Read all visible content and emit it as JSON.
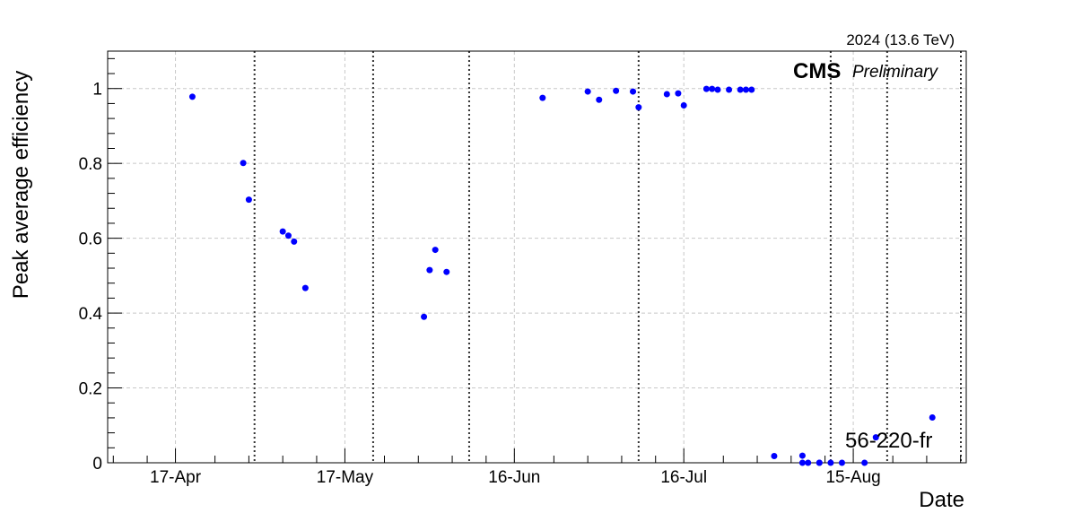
{
  "chart_data": {
    "type": "scatter",
    "ylabel": "Peak average efficiency",
    "xlabel": "Date",
    "energy_label": "2024 (13.6 TeV)",
    "experiment": "CMS",
    "status": "Preliminary",
    "annotation": "56-220-fr",
    "marker_color": "#0000ff",
    "grid": true,
    "ylim": [
      0,
      1.1
    ],
    "xlim": [
      "2024-04-05",
      "2024-09-04"
    ],
    "yticks": [
      "0",
      "0.2",
      "0.4",
      "0.6",
      "0.8",
      "1"
    ],
    "xticks": [
      {
        "label": "17-Apr",
        "date": "2024-04-17"
      },
      {
        "label": "17-May",
        "date": "2024-05-17"
      },
      {
        "label": "16-Jun",
        "date": "2024-06-16"
      },
      {
        "label": "16-Jul",
        "date": "2024-07-16"
      },
      {
        "label": "15-Aug",
        "date": "2024-08-15"
      }
    ],
    "vertical_markers": [
      "2024-05-01",
      "2024-05-22",
      "2024-06-08",
      "2024-07-08",
      "2024-08-11",
      "2024-08-21",
      "2024-09-05"
    ],
    "points": [
      {
        "x": "2024-04-20",
        "y": 0.978
      },
      {
        "x": "2024-04-29",
        "y": 0.801
      },
      {
        "x": "2024-04-30",
        "y": 0.703
      },
      {
        "x": "2024-05-06",
        "y": 0.618
      },
      {
        "x": "2024-05-07",
        "y": 0.607
      },
      {
        "x": "2024-05-08",
        "y": 0.591
      },
      {
        "x": "2024-05-10",
        "y": 0.467
      },
      {
        "x": "2024-05-31",
        "y": 0.39
      },
      {
        "x": "2024-06-01",
        "y": 0.515
      },
      {
        "x": "2024-06-02",
        "y": 0.569
      },
      {
        "x": "2024-06-04",
        "y": 0.51
      },
      {
        "x": "2024-06-21",
        "y": 0.975
      },
      {
        "x": "2024-06-29",
        "y": 0.992
      },
      {
        "x": "2024-07-01",
        "y": 0.97
      },
      {
        "x": "2024-07-04",
        "y": 0.994
      },
      {
        "x": "2024-07-07",
        "y": 0.992
      },
      {
        "x": "2024-07-08",
        "y": 0.95
      },
      {
        "x": "2024-07-13",
        "y": 0.985
      },
      {
        "x": "2024-07-15",
        "y": 0.987
      },
      {
        "x": "2024-07-16",
        "y": 0.955
      },
      {
        "x": "2024-07-20",
        "y": 0.999
      },
      {
        "x": "2024-07-21",
        "y": 0.999
      },
      {
        "x": "2024-07-22",
        "y": 0.997
      },
      {
        "x": "2024-07-24",
        "y": 0.997
      },
      {
        "x": "2024-07-26",
        "y": 0.997
      },
      {
        "x": "2024-07-27",
        "y": 0.997
      },
      {
        "x": "2024-07-28",
        "y": 0.997
      },
      {
        "x": "2024-08-01",
        "y": 0.018
      },
      {
        "x": "2024-08-06",
        "y": 0.019
      },
      {
        "x": "2024-08-06",
        "y": 0.0
      },
      {
        "x": "2024-08-07",
        "y": 0.0
      },
      {
        "x": "2024-08-09",
        "y": 0.0
      },
      {
        "x": "2024-08-09",
        "y": 0.0
      },
      {
        "x": "2024-08-11",
        "y": 0.0
      },
      {
        "x": "2024-08-13",
        "y": 0.0
      },
      {
        "x": "2024-08-17",
        "y": 0.0
      },
      {
        "x": "2024-08-19",
        "y": 0.068
      },
      {
        "x": "2024-08-29",
        "y": 0.121
      }
    ]
  }
}
